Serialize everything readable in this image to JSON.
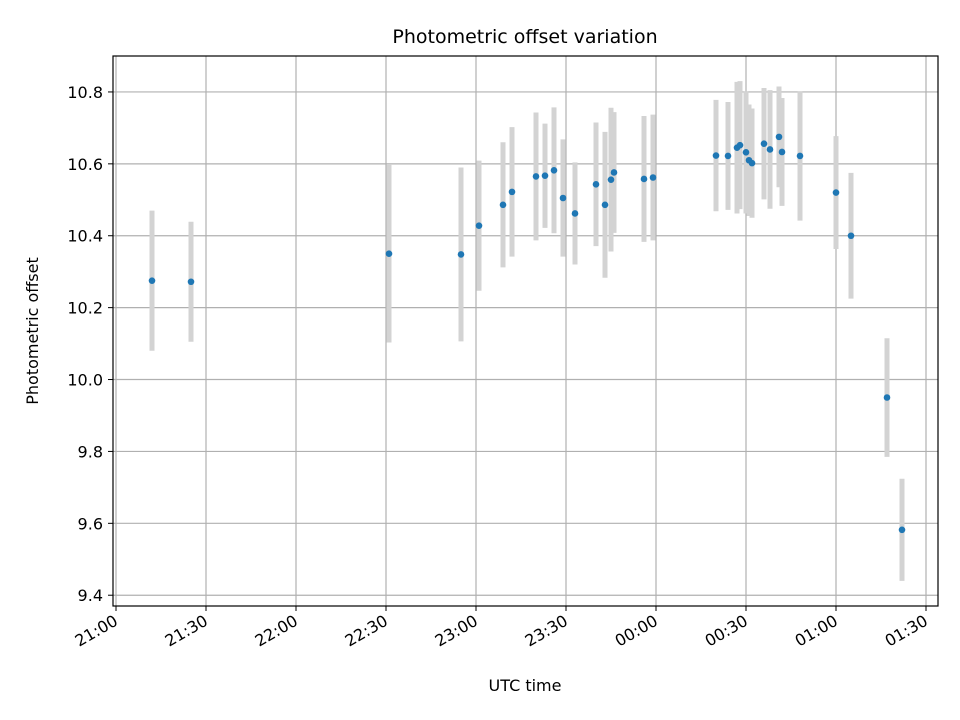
{
  "chart_data": {
    "type": "scatter",
    "title": "Photometric offset variation",
    "xlabel": "UTC time",
    "ylabel": "Photometric offset",
    "x_axis_kind": "time",
    "xlim": [
      "20:59",
      "01:34"
    ],
    "ylim": [
      9.37,
      10.9
    ],
    "xticks": [
      {
        "time": "21:00",
        "label": "21:00"
      },
      {
        "time": "21:30",
        "label": "21:30"
      },
      {
        "time": "22:00",
        "label": "22:00"
      },
      {
        "time": "22:30",
        "label": "22:30"
      },
      {
        "time": "23:00",
        "label": "23:00"
      },
      {
        "time": "23:30",
        "label": "23:30"
      },
      {
        "time": "00:00",
        "label": "00:00"
      },
      {
        "time": "00:30",
        "label": "00:30"
      },
      {
        "time": "01:00",
        "label": "01:00"
      },
      {
        "time": "01:30",
        "label": "01:30"
      }
    ],
    "yticks": [
      9.4,
      9.6,
      9.8,
      10.0,
      10.2,
      10.4,
      10.6,
      10.8
    ],
    "ytick_labels": [
      "9.4",
      "9.6",
      "9.8",
      "10.0",
      "10.2",
      "10.4",
      "10.6",
      "10.8"
    ],
    "grid": true,
    "series": [
      {
        "marker_color": "#1f77b4",
        "errorbar_color": "#d3d3d3",
        "points": [
          {
            "time": "21:12",
            "y": 10.275,
            "err": 0.195
          },
          {
            "time": "21:25",
            "y": 10.272,
            "err": 0.167
          },
          {
            "time": "22:31",
            "y": 10.35,
            "err": 0.247
          },
          {
            "time": "22:55",
            "y": 10.348,
            "err": 0.242
          },
          {
            "time": "23:01",
            "y": 10.428,
            "err": 0.181
          },
          {
            "time": "23:09",
            "y": 10.486,
            "err": 0.174
          },
          {
            "time": "23:12",
            "y": 10.522,
            "err": 0.18
          },
          {
            "time": "23:20",
            "y": 10.565,
            "err": 0.178
          },
          {
            "time": "23:23",
            "y": 10.567,
            "err": 0.145
          },
          {
            "time": "23:26",
            "y": 10.582,
            "err": 0.175
          },
          {
            "time": "23:29",
            "y": 10.505,
            "err": 0.163
          },
          {
            "time": "23:33",
            "y": 10.462,
            "err": 0.142
          },
          {
            "time": "23:40",
            "y": 10.543,
            "err": 0.172
          },
          {
            "time": "23:43",
            "y": 10.486,
            "err": 0.203
          },
          {
            "time": "23:45",
            "y": 10.556,
            "err": 0.2
          },
          {
            "time": "23:46",
            "y": 10.576,
            "err": 0.168
          },
          {
            "time": "23:56",
            "y": 10.558,
            "err": 0.175
          },
          {
            "time": "23:59",
            "y": 10.562,
            "err": 0.175
          },
          {
            "time": "00:20",
            "y": 10.623,
            "err": 0.155
          },
          {
            "time": "00:24",
            "y": 10.622,
            "err": 0.15
          },
          {
            "time": "00:27",
            "y": 10.645,
            "err": 0.183
          },
          {
            "time": "00:28",
            "y": 10.652,
            "err": 0.178
          },
          {
            "time": "00:30",
            "y": 10.632,
            "err": 0.17
          },
          {
            "time": "00:31",
            "y": 10.61,
            "err": 0.155
          },
          {
            "time": "00:32",
            "y": 10.602,
            "err": 0.152
          },
          {
            "time": "00:36",
            "y": 10.656,
            "err": 0.155
          },
          {
            "time": "00:38",
            "y": 10.64,
            "err": 0.165
          },
          {
            "time": "00:41",
            "y": 10.675,
            "err": 0.14
          },
          {
            "time": "00:42",
            "y": 10.633,
            "err": 0.15
          },
          {
            "time": "00:48",
            "y": 10.622,
            "err": 0.18
          },
          {
            "time": "01:00",
            "y": 10.52,
            "err": 0.157
          },
          {
            "time": "01:05",
            "y": 10.4,
            "err": 0.175
          },
          {
            "time": "01:17",
            "y": 9.95,
            "err": 0.165
          },
          {
            "time": "01:22",
            "y": 9.582,
            "err": 0.142
          }
        ]
      }
    ]
  }
}
